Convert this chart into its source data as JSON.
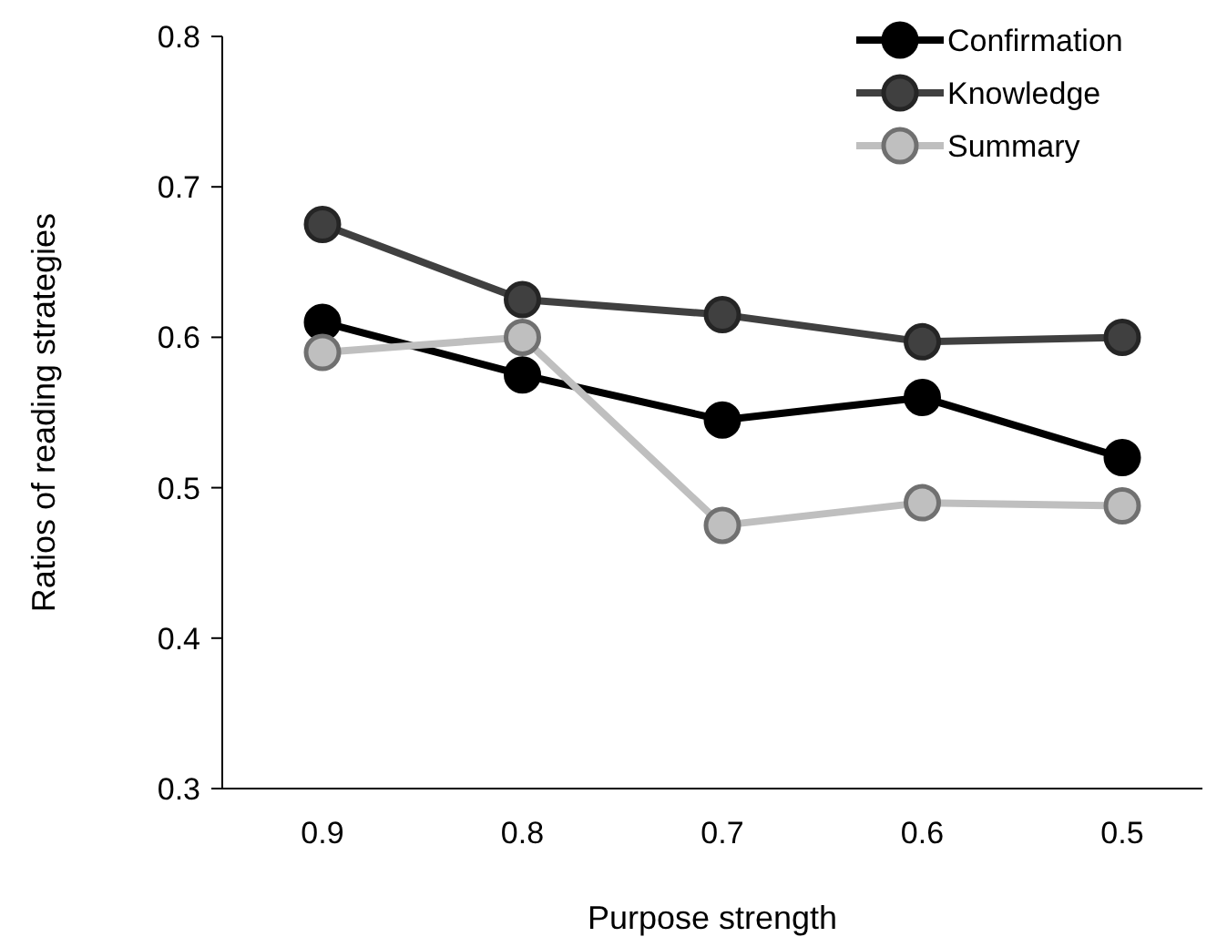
{
  "chart_data": {
    "type": "line",
    "xlabel": "Purpose strength",
    "ylabel": "Ratios of reading strategies",
    "categories": [
      "0.9",
      "0.8",
      "0.7",
      "0.6",
      "0.5"
    ],
    "ylim": [
      0.3,
      0.8
    ],
    "yticks": [
      0.3,
      0.4,
      0.5,
      0.6,
      0.7,
      0.8
    ],
    "grid": false,
    "legend": "top right",
    "marker": "circle",
    "line_style": "solid",
    "series": [
      {
        "name": "Confirmation",
        "color": "#000000",
        "values": [
          0.61,
          0.575,
          0.545,
          0.56,
          0.52
        ]
      },
      {
        "name": "Knowledge",
        "color": "#404040",
        "values": [
          0.675,
          0.625,
          0.615,
          0.597,
          0.6
        ]
      },
      {
        "name": "Summary",
        "color": "#bfbfbf",
        "values": [
          0.59,
          0.6,
          0.475,
          0.49,
          0.488
        ]
      }
    ]
  }
}
